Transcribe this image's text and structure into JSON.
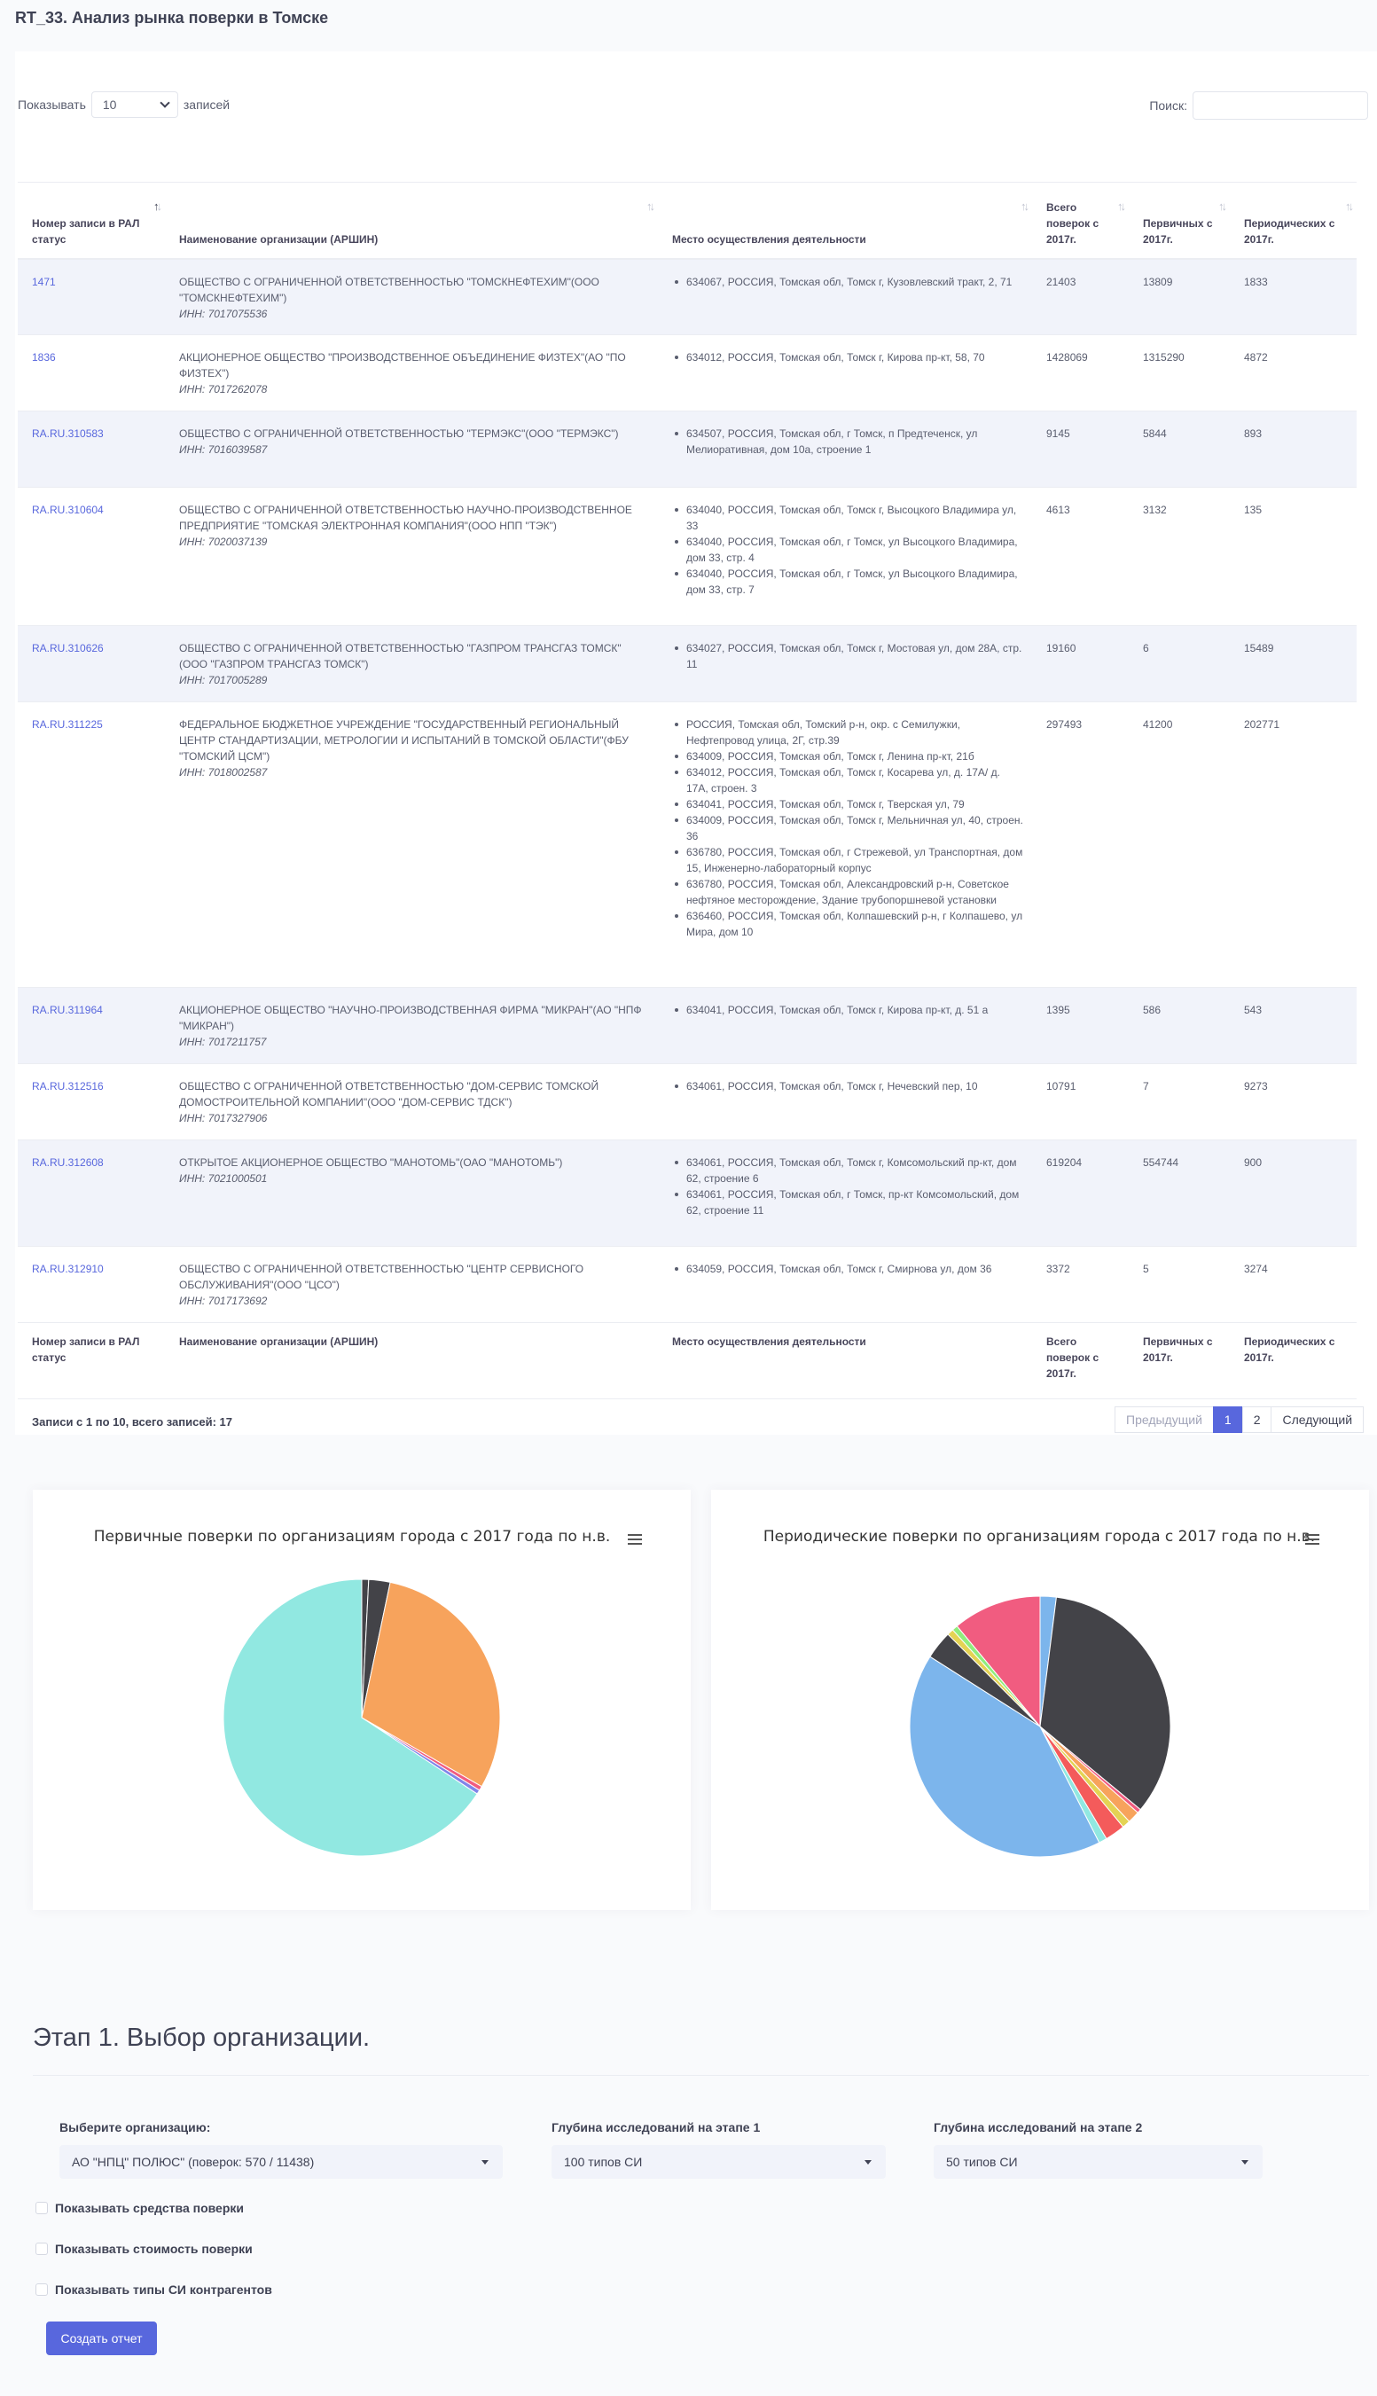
{
  "page": {
    "title": "RT_33. Анализ рынка поверки в Томске"
  },
  "table_controls": {
    "show_label": "Показывать",
    "page_size": "10",
    "entries_label": "записей",
    "search_label": "Поиск:",
    "search_value": ""
  },
  "table": {
    "columns": [
      "Номер записи в РАЛ статус",
      "Наименование организации (АРШИН)",
      "Место осуществления деятельности",
      "Всего поверок с 2017г.",
      "Первичных с 2017г.",
      "Периодических с 2017г."
    ],
    "rows": [
      {
        "id": "1471",
        "org": "ОБЩЕСТВО С ОГРАНИЧЕННОЙ ОТВЕТСТВЕННОСТЬЮ \"ТОМСКНЕФТЕХИМ\"(ООО \"ТОМСКНЕФТЕХИМ\")",
        "inn": "ИНН: 7017075536",
        "places": [
          "634067, РОССИЯ, Томская обл, Томск г, Кузовлевский тракт, 2, 71"
        ],
        "total": "21403",
        "primary": "13809",
        "periodic": "1833"
      },
      {
        "id": "1836",
        "org": "АКЦИОНЕРНОЕ ОБЩЕСТВО \"ПРОИЗВОДСТВЕННОЕ ОБЪЕДИНЕНИЕ ФИЗТЕХ\"(АО \"ПО ФИЗТЕХ\")",
        "inn": "ИНН: 7017262078",
        "places": [
          "634012, РОССИЯ, Томская обл, Томск г, Кирова пр-кт, 58, 70"
        ],
        "total": "1428069",
        "primary": "1315290",
        "periodic": "4872"
      },
      {
        "id": "RA.RU.310583",
        "org": "ОБЩЕСТВО С ОГРАНИЧЕННОЙ ОТВЕТСТВЕННОСТЬЮ \"ТЕРМЭКС\"(ООО \"ТЕРМЭКС\")",
        "inn": "ИНН: 7016039587",
        "places": [
          "634507, РОССИЯ, Томская обл, г Томск, п Предтеченск, ул Мелиоративная, дом 10а, строение 1"
        ],
        "total": "9145",
        "primary": "5844",
        "periodic": "893"
      },
      {
        "id": "RA.RU.310604",
        "org": "ОБЩЕСТВО С ОГРАНИЧЕННОЙ ОТВЕТСТВЕННОСТЬЮ НАУЧНО-ПРОИЗВОДСТВЕННОЕ ПРЕДПРИЯТИЕ \"ТОМСКАЯ ЭЛЕКТРОННАЯ КОМПАНИЯ\"(ООО НПП \"ТЭК\")",
        "inn": "ИНН: 7020037139",
        "places": [
          "634040, РОССИЯ, Томская обл, Томск г, Высоцкого Владимира ул, 33",
          "634040, РОССИЯ, Томская обл, г Томск, ул Высоцкого Владимира, дом 33, стр. 4",
          "634040, РОССИЯ, Томская обл, г Томск, ул Высоцкого Владимира, дом 33, стр. 7"
        ],
        "total": "4613",
        "primary": "3132",
        "periodic": "135"
      },
      {
        "id": "RA.RU.310626",
        "org": "ОБЩЕСТВО С ОГРАНИЧЕННОЙ ОТВЕТСТВЕННОСТЬЮ \"ГАЗПРОМ ТРАНСГАЗ ТОМСК\"(ООО \"ГАЗПРОМ ТРАНСГАЗ ТОМСК\")",
        "inn": "ИНН: 7017005289",
        "places": [
          "634027, РОССИЯ, Томская обл, Томск г, Мостовая ул, дом 28А, стр. 11"
        ],
        "total": "19160",
        "primary": "6",
        "periodic": "15489"
      },
      {
        "id": "RA.RU.311225",
        "org": "ФЕДЕРАЛЬНОЕ БЮДЖЕТНОЕ УЧРЕЖДЕНИЕ \"ГОСУДАРСТВЕННЫЙ РЕГИОНАЛЬНЫЙ ЦЕНТР СТАНДАРТИЗАЦИИ, МЕТРОЛОГИИ И ИСПЫТАНИЙ В ТОМСКОЙ ОБЛАСТИ\"(ФБУ \"ТОМСКИЙ ЦСМ\")",
        "inn": "ИНН: 7018002587",
        "places": [
          "РОССИЯ, Томская обл, Томский р-н, окр. с Семилужки, Нефтепровод улица, 2Г, стр.39",
          "634009, РОССИЯ, Томская обл, Томск г, Ленина пр-кт, 21б",
          "634012, РОССИЯ, Томская обл, Томск г, Косарева ул, д. 17А/ д. 17А, строен. 3",
          "634041, РОССИЯ, Томская обл, Томск г, Тверская ул, 79",
          "634009, РОССИЯ, Томская обл, Томск г, Мельничная ул, 40, строен. 36",
          "636780, РОССИЯ, Томская обл, г Стрежевой, ул Транспортная, дом 15, Инженерно-лабораторный корпус",
          "636780, РОССИЯ, Томская обл, Александровский р-н, Советское нефтяное месторождение, Здание трубопоршневой установки",
          "636460, РОССИЯ, Томская обл, Колпашевский р-н, г Колпашево, ул Мира, дом 10"
        ],
        "total": "297493",
        "primary": "41200",
        "periodic": "202771"
      },
      {
        "id": "RA.RU.311964",
        "org": "АКЦИОНЕРНОЕ ОБЩЕСТВО \"НАУЧНО-ПРОИЗВОДСТВЕННАЯ ФИРМА \"МИКРАН\"(АО \"НПФ \"МИКРАН\")",
        "inn": "ИНН: 7017211757",
        "places": [
          "634041, РОССИЯ, Томская обл, Томск г, Кирова пр-кт, д. 51 а"
        ],
        "total": "1395",
        "primary": "586",
        "periodic": "543"
      },
      {
        "id": "RA.RU.312516",
        "org": "ОБЩЕСТВО С ОГРАНИЧЕННОЙ ОТВЕТСТВЕННОСТЬЮ \"ДОМ-СЕРВИС ТОМСКОЙ ДОМОСТРОИТЕЛЬНОЙ КОМПАНИИ\"(ООО \"ДОМ-СЕРВИС ТДСК\")",
        "inn": "ИНН: 7017327906",
        "places": [
          "634061, РОССИЯ, Томская обл, Томск г, Нечевский пер, 10"
        ],
        "total": "10791",
        "primary": "7",
        "periodic": "9273"
      },
      {
        "id": "RA.RU.312608",
        "org": "ОТКРЫТОЕ АКЦИОНЕРНОЕ ОБЩЕСТВО \"МАНОТОМЬ\"(ОАО \"МАНОТОМЬ\")",
        "inn": "ИНН: 7021000501",
        "places": [
          "634061, РОССИЯ, Томская обл, Томск г, Комсомольский пр-кт, дом 62, строение 6",
          "634061, РОССИЯ, Томская обл, г Томск, пр-кт Комсомольский, дом 62, строение 11"
        ],
        "total": "619204",
        "primary": "554744",
        "periodic": "900"
      },
      {
        "id": "RA.RU.312910",
        "org": "ОБЩЕСТВО С ОГРАНИЧЕННОЙ ОТВЕТСТВЕННОСТЬЮ \"ЦЕНТР СЕРВИСНОГО ОБСЛУЖИВАНИЯ\"(ООО \"ЦСО\")",
        "inn": "ИНН: 7017173692",
        "places": [
          "634059, РОССИЯ, Томская обл, Томск г, Смирнова ул, дом 36"
        ],
        "total": "3372",
        "primary": "5",
        "periodic": "3274"
      }
    ],
    "info": "Записи с 1 по 10, всего записей: 17",
    "pager": {
      "prev": "Предыдущий",
      "pages": [
        "1",
        "2"
      ],
      "current": "1",
      "next": "Следующий"
    }
  },
  "chart_data": [
    {
      "type": "pie",
      "title": "Первичные поверки по организациям города с 2017 года по н.в.",
      "series": [
        {
          "name": "",
          "values": [
            {
              "value": 0.8,
              "color": "#434348"
            },
            {
              "value": 2.5,
              "color": "#434348"
            },
            {
              "value": 30.0,
              "color": "#f7a35c"
            },
            {
              "value": 0.5,
              "color": "#f15c80"
            },
            {
              "value": 0.5,
              "color": "#8085e9"
            },
            {
              "value": 65.7,
              "color": "#91e8e1"
            }
          ]
        }
      ]
    },
    {
      "type": "pie",
      "title": "Периодические поверки по организациям города с 2017 года по н.в.",
      "series": [
        {
          "name": "",
          "values": [
            {
              "value": 2.0,
              "color": "#7cb5ec"
            },
            {
              "value": 34.0,
              "color": "#434348"
            },
            {
              "value": 0.5,
              "color": "#f15c80"
            },
            {
              "value": 1.5,
              "color": "#f7a35c"
            },
            {
              "value": 1.0,
              "color": "#e4d354"
            },
            {
              "value": 2.5,
              "color": "#f45b5b"
            },
            {
              "value": 1.0,
              "color": "#91e8e1"
            },
            {
              "value": 41.5,
              "color": "#7cb5ec"
            },
            {
              "value": 3.5,
              "color": "#434348"
            },
            {
              "value": 0.8,
              "color": "#e4d354"
            },
            {
              "value": 0.7,
              "color": "#90ed7d"
            },
            {
              "value": 11.0,
              "color": "#f15c80"
            }
          ]
        }
      ]
    }
  ],
  "stage": {
    "title": "Этап 1. Выбор организации.",
    "org_label": "Выберите организацию:",
    "org_value": "АО \"НПЦ\" ПОЛЮС\" (поверок: 570 / 11438)",
    "depth1_label": "Глубина исследований на этапе 1",
    "depth1_value": "100 типов СИ",
    "depth2_label": "Глубина исследований на этапе 2",
    "depth2_value": "50 типов СИ",
    "checks": [
      "Показывать средства поверки",
      "Показывать стоимость поверки",
      "Показывать типы СИ контрагентов"
    ],
    "submit": "Создать отчет"
  }
}
